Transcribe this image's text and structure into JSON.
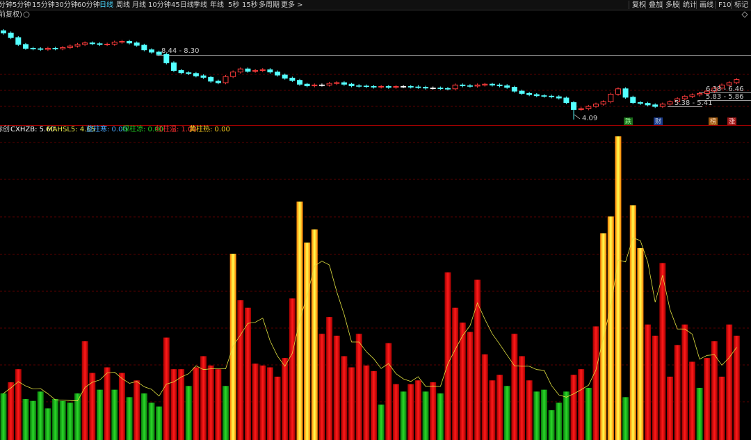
{
  "toolbar": {
    "periods": [
      "分钟",
      "5分钟",
      "15分钟",
      "30分钟",
      "60分钟",
      "日线",
      "周线",
      "月线",
      "10分钟",
      "45日线",
      "季线",
      "年线",
      "5秒",
      "15秒",
      "多周期",
      "更多 >"
    ],
    "active": 5,
    "tools": [
      "复权",
      "叠加",
      "多股",
      "统计",
      "画线",
      "F10",
      "标记"
    ]
  },
  "price_panel": {
    "label": "前复权)",
    "annotations": [
      "8.44 - 8.30",
      "6.38 - 6.46",
      "5.83 - 5.86",
      "5.38 - 5.41",
      "4.09"
    ],
    "markers": [
      "跌",
      "财",
      "榜",
      "涨"
    ]
  },
  "indicator_panel": {
    "name": "标创",
    "legend": [
      {
        "text": "CXHZB: 5.60",
        "color": "#ffffff"
      },
      {
        "text": "MAHSL5: 4.65",
        "color": "#e8e84a"
      },
      {
        "text": "蓝柱寒: 0.00",
        "color": "#4aa8ff"
      },
      {
        "text": "绿柱凉: 0.00",
        "color": "#22d022"
      },
      {
        "text": "红柱温: 1.00",
        "color": "#ff3030"
      },
      {
        "text": "黄柱热: 0.00",
        "color": "#ffd020"
      }
    ]
  },
  "chart_data": [
    {
      "type": "candlestick",
      "up_color": "#ff3c3c",
      "down_color": "#54ffff",
      "open": [
        9.9,
        9.75,
        9.45,
        9.0,
        8.75,
        8.72,
        8.68,
        8.75,
        8.72,
        8.8,
        8.9,
        9.0,
        9.1,
        9.05,
        9.0,
        9.02,
        9.15,
        9.2,
        9.1,
        8.95,
        8.65,
        8.5,
        8.35,
        7.8,
        7.3,
        7.15,
        7.1,
        6.95,
        6.85,
        6.6,
        6.5,
        6.9,
        7.2,
        7.4,
        7.25,
        7.3,
        7.35,
        7.2,
        7.0,
        6.8,
        6.65,
        6.4,
        6.3,
        6.35,
        6.35,
        6.45,
        6.5,
        6.4,
        6.3,
        6.28,
        6.25,
        6.22,
        6.25,
        6.2,
        6.25,
        6.25,
        6.22,
        6.2,
        6.15,
        6.15,
        6.12,
        6.1,
        6.35,
        6.3,
        6.28,
        6.35,
        6.4,
        6.35,
        6.3,
        6.2,
        5.95,
        5.8,
        5.72,
        5.65,
        5.62,
        5.58,
        5.5,
        5.2,
        4.75,
        4.8,
        4.95,
        5.1,
        5.25,
        5.75,
        6.1,
        5.55,
        5.2,
        5.15,
        5.05,
        4.95,
        5.1,
        5.25,
        5.45,
        5.6,
        5.7,
        5.8,
        5.95,
        6.15,
        6.35,
        6.5
      ],
      "close": [
        9.75,
        9.45,
        9.0,
        8.75,
        8.72,
        8.68,
        8.75,
        8.72,
        8.8,
        8.9,
        9.0,
        9.1,
        9.05,
        9.0,
        9.02,
        9.15,
        9.2,
        9.1,
        8.95,
        8.65,
        8.5,
        8.35,
        7.8,
        7.3,
        7.15,
        7.1,
        6.95,
        6.85,
        6.6,
        6.5,
        6.9,
        7.2,
        7.4,
        7.25,
        7.3,
        7.35,
        7.2,
        7.0,
        6.8,
        6.65,
        6.4,
        6.3,
        6.35,
        6.35,
        6.45,
        6.5,
        6.4,
        6.3,
        6.28,
        6.25,
        6.22,
        6.25,
        6.2,
        6.25,
        6.25,
        6.22,
        6.2,
        6.15,
        6.15,
        6.12,
        6.1,
        6.35,
        6.3,
        6.28,
        6.35,
        6.4,
        6.35,
        6.3,
        6.2,
        5.95,
        5.8,
        5.72,
        5.65,
        5.62,
        5.58,
        5.5,
        5.2,
        4.75,
        4.8,
        4.95,
        5.1,
        5.25,
        5.75,
        6.1,
        5.55,
        5.2,
        5.15,
        5.05,
        4.95,
        5.1,
        5.25,
        5.45,
        5.6,
        5.7,
        5.8,
        5.95,
        6.15,
        6.35,
        6.5,
        6.7
      ],
      "high": [
        10.0,
        9.85,
        9.55,
        9.1,
        8.85,
        8.82,
        8.85,
        8.85,
        8.9,
        9.0,
        9.1,
        9.2,
        9.2,
        9.15,
        9.12,
        9.25,
        9.3,
        9.3,
        9.2,
        9.05,
        8.75,
        8.6,
        8.45,
        7.9,
        7.4,
        7.25,
        7.2,
        7.05,
        6.95,
        6.7,
        7.0,
        7.3,
        7.5,
        7.5,
        7.4,
        7.45,
        7.45,
        7.3,
        7.1,
        6.9,
        6.75,
        6.5,
        6.45,
        6.45,
        6.55,
        6.6,
        6.6,
        6.5,
        6.4,
        6.38,
        6.35,
        6.35,
        6.35,
        6.35,
        6.35,
        6.35,
        6.35,
        6.3,
        6.25,
        6.25,
        6.22,
        6.45,
        6.45,
        6.4,
        6.45,
        6.5,
        6.5,
        6.45,
        6.4,
        6.3,
        6.05,
        5.9,
        5.82,
        5.75,
        5.72,
        5.68,
        5.6,
        5.3,
        4.9,
        5.05,
        5.2,
        5.35,
        5.85,
        6.2,
        6.2,
        5.65,
        5.3,
        5.25,
        5.15,
        5.2,
        5.35,
        5.55,
        5.7,
        5.8,
        5.9,
        6.05,
        6.25,
        6.45,
        6.6,
        6.8
      ],
      "low": [
        9.65,
        9.35,
        8.9,
        8.65,
        8.62,
        8.58,
        8.58,
        8.62,
        8.62,
        8.7,
        8.8,
        8.9,
        8.95,
        8.9,
        8.9,
        8.92,
        9.05,
        9.0,
        8.85,
        8.55,
        8.4,
        8.25,
        7.7,
        7.2,
        7.05,
        7.0,
        6.85,
        6.75,
        6.5,
        6.4,
        6.4,
        6.8,
        7.1,
        7.15,
        7.15,
        7.2,
        7.1,
        6.9,
        6.7,
        6.55,
        6.3,
        6.2,
        6.2,
        6.25,
        6.25,
        6.35,
        6.3,
        6.2,
        6.18,
        6.15,
        6.12,
        6.12,
        6.1,
        6.1,
        6.15,
        6.12,
        6.1,
        6.05,
        6.05,
        6.02,
        6.0,
        6.0,
        6.2,
        6.18,
        6.18,
        6.25,
        6.25,
        6.2,
        6.1,
        5.85,
        5.7,
        5.62,
        5.55,
        5.52,
        5.48,
        5.4,
        5.1,
        4.09,
        4.65,
        4.7,
        4.85,
        5.0,
        5.15,
        5.65,
        5.45,
        5.1,
        5.05,
        4.95,
        4.85,
        4.85,
        5.0,
        5.15,
        5.35,
        5.5,
        5.6,
        5.7,
        5.85,
        6.05,
        6.25,
        6.4
      ]
    },
    {
      "type": "bar",
      "line_color": "#e0e040",
      "series": [
        {
          "color": "#22c822",
          "values": [
            2.5,
            null,
            null,
            2.2,
            2.1,
            2.6,
            1.7,
            2.2,
            2.1,
            2.0,
            2.5,
            null,
            null,
            2.7,
            null,
            2.7,
            null,
            2.3,
            null,
            2.5,
            2.0,
            1.8,
            null,
            null,
            null,
            2.9,
            null,
            null,
            null,
            null,
            2.9,
            null,
            null,
            null,
            null,
            null,
            null,
            null,
            null,
            null,
            null,
            null,
            null,
            null,
            null,
            null,
            null,
            null,
            null,
            null,
            null,
            1.9,
            null,
            null,
            2.6,
            null,
            null,
            2.6,
            null,
            2.5,
            null,
            null,
            null,
            null,
            null,
            null,
            null,
            null,
            2.9,
            null,
            null,
            null,
            2.6,
            2.7,
            1.6,
            2.0,
            2.6,
            null,
            null,
            2.8,
            null,
            null,
            null,
            null,
            2.3,
            null,
            null,
            null,
            null,
            null,
            null,
            null,
            null,
            null,
            2.8,
            null,
            null,
            null,
            null,
            null
          ]
        },
        {
          "color": "#e01010",
          "values": [
            null,
            3.1,
            3.8,
            null,
            null,
            null,
            null,
            null,
            null,
            null,
            null,
            5.3,
            3.6,
            null,
            3.9,
            null,
            3.6,
            null,
            3.2,
            null,
            null,
            null,
            5.5,
            3.8,
            3.8,
            null,
            3.9,
            4.5,
            4.0,
            3.8,
            null,
            null,
            7.5,
            7.1,
            4.1,
            4.0,
            3.9,
            3.4,
            4.4,
            7.6,
            null,
            null,
            null,
            5.7,
            6.6,
            5.6,
            4.5,
            3.9,
            5.7,
            4.0,
            3.7,
            null,
            5.2,
            3.0,
            null,
            3.0,
            3.2,
            null,
            3.1,
            null,
            9.0,
            7.1,
            6.3,
            5.8,
            8.6,
            4.6,
            3.2,
            3.5,
            null,
            5.7,
            4.5,
            3.2,
            null,
            null,
            null,
            null,
            null,
            3.5,
            3.8,
            null,
            6.1,
            null,
            null,
            null,
            null,
            null,
            null,
            6.2,
            5.6,
            9.5,
            3.4,
            5.1,
            6.2,
            4.2,
            null,
            4.4,
            5.3,
            3.4,
            6.2,
            5.6
          ]
        },
        {
          "color": "#ffb000",
          "values": [
            null,
            null,
            null,
            null,
            null,
            null,
            null,
            null,
            null,
            null,
            null,
            null,
            null,
            null,
            null,
            null,
            null,
            null,
            null,
            null,
            null,
            null,
            null,
            null,
            null,
            null,
            null,
            null,
            null,
            null,
            null,
            10.0,
            null,
            null,
            null,
            null,
            null,
            null,
            null,
            null,
            12.8,
            10.6,
            11.3,
            null,
            null,
            null,
            null,
            null,
            null,
            null,
            null,
            null,
            null,
            null,
            null,
            null,
            null,
            null,
            null,
            null,
            null,
            null,
            null,
            null,
            null,
            null,
            null,
            null,
            null,
            null,
            null,
            null,
            null,
            null,
            null,
            null,
            null,
            null,
            null,
            null,
            null,
            11.1,
            12.0,
            16.3,
            null,
            12.6,
            10.3,
            null,
            null,
            null,
            null,
            null,
            null,
            null,
            null,
            null,
            null,
            null,
            null,
            null
          ]
        }
      ]
    }
  ]
}
